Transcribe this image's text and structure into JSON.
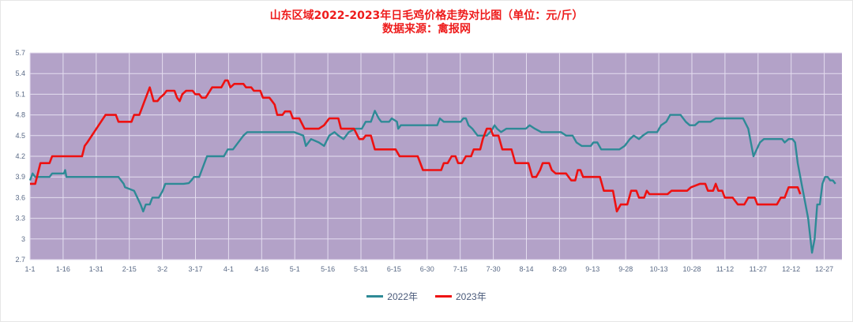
{
  "title": "山东区域2022-2023年日毛鸡价格走势对比图（单位：元/斤）",
  "subtitle": "数据来源：禽报网",
  "colors": {
    "plot_bg": "#b3a2c8",
    "grid": "#e4ddef",
    "series_2022": "#2e8a96",
    "series_2023": "#ee1111",
    "title": "#ee1c1c"
  },
  "legend": [
    {
      "label": "2022年",
      "color": "#2e8a96"
    },
    {
      "label": "2023年",
      "color": "#ee1111"
    }
  ],
  "chart_data": {
    "type": "line",
    "title": "山东区域2022-2023年日毛鸡价格走势对比图（单位：元/斤）",
    "subtitle": "数据来源：禽报网",
    "xlabel": "",
    "ylabel": "元/斤",
    "ylim": [
      2.7,
      5.7
    ],
    "yticks": [
      "2.7",
      "3",
      "3.3",
      "3.6",
      "3.9",
      "4.2",
      "4.5",
      "4.8",
      "5.1",
      "5.4",
      "5.7"
    ],
    "xticks": [
      "1-1",
      "1-16",
      "1-31",
      "2-15",
      "3-2",
      "3-17",
      "4-1",
      "4-16",
      "5-1",
      "5-16",
      "5-31",
      "6-15",
      "6-30",
      "7-15",
      "7-30",
      "8-14",
      "8-29",
      "9-13",
      "9-28",
      "10-13",
      "10-28",
      "11-12",
      "11-27",
      "12-12",
      "12-27"
    ],
    "grid": true,
    "legend_position": "bottom",
    "series": [
      {
        "name": "2022年",
        "color": "#2e8a96",
        "points": [
          [
            0,
            3.85
          ],
          [
            2,
            3.95
          ],
          [
            4,
            3.9
          ],
          [
            15,
            3.9
          ],
          [
            17,
            3.95
          ],
          [
            26,
            3.95
          ],
          [
            27,
            4.0
          ],
          [
            28,
            3.9
          ],
          [
            45,
            3.9
          ],
          [
            50,
            3.9
          ],
          [
            68,
            3.9
          ],
          [
            70,
            3.85
          ],
          [
            72,
            3.8
          ],
          [
            73,
            3.75
          ],
          [
            80,
            3.7
          ],
          [
            85,
            3.5
          ],
          [
            87,
            3.4
          ],
          [
            89,
            3.5
          ],
          [
            92,
            3.5
          ],
          [
            94,
            3.6
          ],
          [
            99,
            3.6
          ],
          [
            102,
            3.7
          ],
          [
            104,
            3.8
          ],
          [
            118,
            3.8
          ],
          [
            122,
            3.81
          ],
          [
            124,
            3.85
          ],
          [
            126,
            3.9
          ],
          [
            130,
            3.9
          ],
          [
            132,
            4.0
          ],
          [
            134,
            4.1
          ],
          [
            136,
            4.2
          ],
          [
            149,
            4.2
          ],
          [
            152,
            4.3
          ],
          [
            156,
            4.3
          ],
          [
            164,
            4.5
          ],
          [
            167,
            4.55
          ],
          [
            194,
            4.55
          ],
          [
            203,
            4.55
          ],
          [
            210,
            4.5
          ],
          [
            212,
            4.35
          ],
          [
            216,
            4.45
          ],
          [
            222,
            4.4
          ],
          [
            226,
            4.35
          ],
          [
            230,
            4.5
          ],
          [
            234,
            4.55
          ],
          [
            237,
            4.5
          ],
          [
            241,
            4.45
          ],
          [
            245,
            4.55
          ],
          [
            250,
            4.6
          ],
          [
            255,
            4.6
          ],
          [
            258,
            4.7
          ],
          [
            262,
            4.7
          ],
          [
            265,
            4.86
          ],
          [
            268,
            4.75
          ],
          [
            270,
            4.7
          ],
          [
            276,
            4.7
          ],
          [
            278,
            4.75
          ],
          [
            282,
            4.7
          ],
          [
            283,
            4.6
          ],
          [
            285,
            4.65
          ],
          [
            313,
            4.65
          ],
          [
            315,
            4.75
          ],
          [
            318,
            4.7
          ],
          [
            331,
            4.7
          ],
          [
            333,
            4.75
          ],
          [
            335,
            4.75
          ],
          [
            337,
            4.65
          ],
          [
            340,
            4.6
          ],
          [
            344,
            4.5
          ],
          [
            351,
            4.5
          ],
          [
            355,
            4.58
          ],
          [
            357,
            4.65
          ],
          [
            359,
            4.6
          ],
          [
            362,
            4.55
          ],
          [
            366,
            4.6
          ],
          [
            381,
            4.6
          ],
          [
            384,
            4.65
          ],
          [
            388,
            4.6
          ],
          [
            393,
            4.55
          ],
          [
            408,
            4.55
          ],
          [
            412,
            4.5
          ],
          [
            417,
            4.5
          ],
          [
            420,
            4.4
          ],
          [
            424,
            4.35
          ],
          [
            431,
            4.35
          ],
          [
            433,
            4.4
          ],
          [
            436,
            4.4
          ],
          [
            439,
            4.3
          ],
          [
            453,
            4.3
          ],
          [
            457,
            4.35
          ],
          [
            461,
            4.45
          ],
          [
            464,
            4.5
          ],
          [
            468,
            4.45
          ],
          [
            471,
            4.5
          ],
          [
            475,
            4.55
          ],
          [
            482,
            4.55
          ],
          [
            485,
            4.65
          ],
          [
            489,
            4.7
          ],
          [
            492,
            4.8
          ],
          [
            500,
            4.8
          ],
          [
            504,
            4.7
          ],
          [
            507,
            4.65
          ],
          [
            511,
            4.65
          ],
          [
            514,
            4.7
          ],
          [
            523,
            4.7
          ],
          [
            527,
            4.75
          ],
          [
            548,
            4.75
          ],
          [
            552,
            4.6
          ],
          [
            556,
            4.2
          ],
          [
            561,
            4.4
          ],
          [
            564,
            4.45
          ],
          [
            578,
            4.45
          ],
          [
            580,
            4.4
          ],
          [
            583,
            4.45
          ],
          [
            586,
            4.45
          ],
          [
            588,
            4.4
          ],
          [
            590,
            4.1
          ],
          [
            593,
            3.8
          ],
          [
            596,
            3.5
          ],
          [
            598,
            3.3
          ],
          [
            601,
            2.8
          ],
          [
            603,
            3.0
          ],
          [
            605,
            3.5
          ],
          [
            607,
            3.5
          ],
          [
            609,
            3.8
          ],
          [
            611,
            3.9
          ],
          [
            613,
            3.9
          ],
          [
            615,
            3.85
          ],
          [
            617,
            3.85
          ],
          [
            619,
            3.8
          ]
        ]
      },
      {
        "name": "2023年",
        "color": "#ee1111",
        "points": [
          [
            0,
            3.8
          ],
          [
            4,
            3.8
          ],
          [
            8,
            4.1
          ],
          [
            15,
            4.1
          ],
          [
            17,
            4.2
          ],
          [
            40,
            4.2
          ],
          [
            42,
            4.35
          ],
          [
            44,
            4.4
          ],
          [
            58,
            4.8
          ],
          [
            66,
            4.8
          ],
          [
            68,
            4.7
          ],
          [
            78,
            4.7
          ],
          [
            80,
            4.8
          ],
          [
            84,
            4.8
          ],
          [
            86,
            4.9
          ],
          [
            88,
            5.0
          ],
          [
            90,
            5.1
          ],
          [
            92,
            5.2
          ],
          [
            95,
            5.0
          ],
          [
            98,
            5.0
          ],
          [
            100,
            5.05
          ],
          [
            103,
            5.1
          ],
          [
            105,
            5.15
          ],
          [
            111,
            5.15
          ],
          [
            113,
            5.05
          ],
          [
            115,
            5.0
          ],
          [
            117,
            5.1
          ],
          [
            120,
            5.15
          ],
          [
            125,
            5.15
          ],
          [
            127,
            5.1
          ],
          [
            130,
            5.1
          ],
          [
            132,
            5.05
          ],
          [
            135,
            5.05
          ],
          [
            140,
            5.2
          ],
          [
            147,
            5.2
          ],
          [
            150,
            5.3
          ],
          [
            152,
            5.3
          ],
          [
            154,
            5.2
          ],
          [
            157,
            5.25
          ],
          [
            164,
            5.25
          ],
          [
            166,
            5.2
          ],
          [
            170,
            5.2
          ],
          [
            172,
            5.15
          ],
          [
            177,
            5.15
          ],
          [
            179,
            5.05
          ],
          [
            184,
            5.05
          ],
          [
            186,
            5.0
          ],
          [
            188,
            4.95
          ],
          [
            190,
            4.8
          ],
          [
            194,
            4.8
          ],
          [
            196,
            4.85
          ],
          [
            200,
            4.85
          ],
          [
            202,
            4.75
          ],
          [
            207,
            4.75
          ],
          [
            211,
            4.6
          ],
          [
            222,
            4.6
          ],
          [
            226,
            4.65
          ],
          [
            228,
            4.7
          ],
          [
            230,
            4.75
          ],
          [
            237,
            4.75
          ],
          [
            239,
            4.6
          ],
          [
            249,
            4.6
          ],
          [
            253,
            4.45
          ],
          [
            256,
            4.45
          ],
          [
            258,
            4.5
          ],
          [
            262,
            4.5
          ],
          [
            265,
            4.3
          ],
          [
            281,
            4.3
          ],
          [
            284,
            4.2
          ],
          [
            298,
            4.2
          ],
          [
            302,
            4.0
          ],
          [
            316,
            4.0
          ],
          [
            318,
            4.1
          ],
          [
            321,
            4.1
          ],
          [
            324,
            4.2
          ],
          [
            327,
            4.2
          ],
          [
            329,
            4.1
          ],
          [
            332,
            4.1
          ],
          [
            335,
            4.2
          ],
          [
            339,
            4.2
          ],
          [
            341,
            4.3
          ],
          [
            346,
            4.3
          ],
          [
            348,
            4.45
          ],
          [
            351,
            4.6
          ],
          [
            354,
            4.6
          ],
          [
            356,
            4.5
          ],
          [
            360,
            4.5
          ],
          [
            363,
            4.3
          ],
          [
            370,
            4.3
          ],
          [
            373,
            4.1
          ],
          [
            383,
            4.1
          ],
          [
            386,
            3.9
          ],
          [
            389,
            3.9
          ],
          [
            392,
            4.0
          ],
          [
            394,
            4.1
          ],
          [
            399,
            4.1
          ],
          [
            401,
            4.0
          ],
          [
            404,
            3.95
          ],
          [
            412,
            3.95
          ],
          [
            416,
            3.85
          ],
          [
            419,
            3.85
          ],
          [
            421,
            4.0
          ],
          [
            423,
            4.0
          ],
          [
            425,
            3.9
          ],
          [
            438,
            3.9
          ],
          [
            441,
            3.7
          ],
          [
            448,
            3.7
          ],
          [
            451,
            3.4
          ],
          [
            454,
            3.5
          ],
          [
            459,
            3.5
          ],
          [
            462,
            3.7
          ],
          [
            466,
            3.7
          ],
          [
            468,
            3.6
          ],
          [
            472,
            3.6
          ],
          [
            474,
            3.7
          ],
          [
            476,
            3.65
          ],
          [
            490,
            3.65
          ],
          [
            493,
            3.7
          ],
          [
            505,
            3.7
          ],
          [
            508,
            3.75
          ],
          [
            515,
            3.8
          ],
          [
            519,
            3.8
          ],
          [
            521,
            3.7
          ],
          [
            525,
            3.7
          ],
          [
            527,
            3.8
          ],
          [
            529,
            3.7
          ],
          [
            532,
            3.7
          ],
          [
            534,
            3.6
          ],
          [
            540,
            3.6
          ],
          [
            544,
            3.5
          ],
          [
            549,
            3.5
          ],
          [
            552,
            3.6
          ],
          [
            557,
            3.6
          ],
          [
            559,
            3.5
          ],
          [
            574,
            3.5
          ],
          [
            577,
            3.6
          ],
          [
            580,
            3.6
          ],
          [
            583,
            3.75
          ],
          [
            590,
            3.75
          ],
          [
            592,
            3.65
          ]
        ]
      }
    ]
  }
}
